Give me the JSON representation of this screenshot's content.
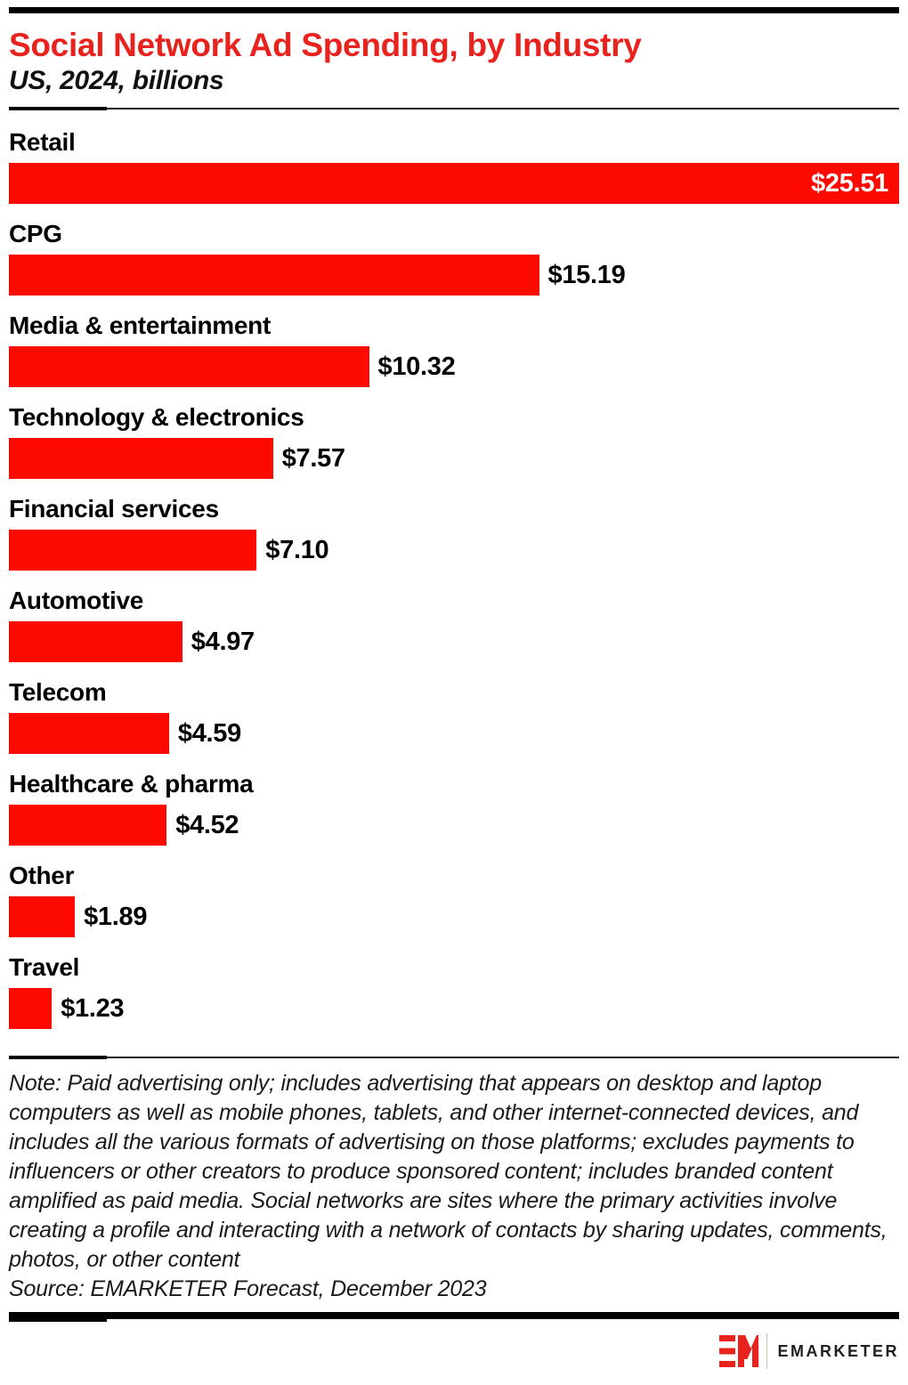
{
  "colors": {
    "title_red": "#e8231d",
    "bar_red": "#fc0a00",
    "text_black": "#000000",
    "note_gray": "#1a1a1a",
    "logo_dark": "#231f20"
  },
  "chart_data": {
    "type": "bar",
    "orientation": "horizontal",
    "title": "Social Network Ad Spending, by Industry",
    "subtitle": "US, 2024, billions",
    "categories": [
      "Retail",
      "CPG",
      "Media & entertainment",
      "Technology & electronics",
      "Financial services",
      "Automotive",
      "Telecom",
      "Healthcare & pharma",
      "Other",
      "Travel"
    ],
    "values": [
      25.51,
      15.19,
      10.32,
      7.57,
      7.1,
      4.97,
      4.59,
      4.52,
      1.89,
      1.23
    ],
    "value_labels": [
      "$25.51",
      "$15.19",
      "$10.32",
      "$7.57",
      "$7.10",
      "$4.97",
      "$4.59",
      "$4.52",
      "$1.89",
      "$1.23"
    ],
    "xlim": [
      0,
      25.51
    ],
    "bar_color": "#fc0a00",
    "grid": false,
    "legend": false,
    "inside_label_indices": [
      0
    ]
  },
  "footer": {
    "note": "Note: Paid advertising only; includes advertising that appears on desktop and laptop computers as well as mobile phones, tablets, and other internet-connected devices, and includes all the various formats of advertising on those platforms; excludes payments to influencers or other creators to produce sponsored content; includes branded content amplified as paid media. Social networks are sites where the primary activities involve creating a profile and interacting with a network of contacts by sharing updates, comments, photos, or other content",
    "source": "Source: EMARKETER Forecast, December 2023",
    "logo_text": "EMARKETER"
  }
}
